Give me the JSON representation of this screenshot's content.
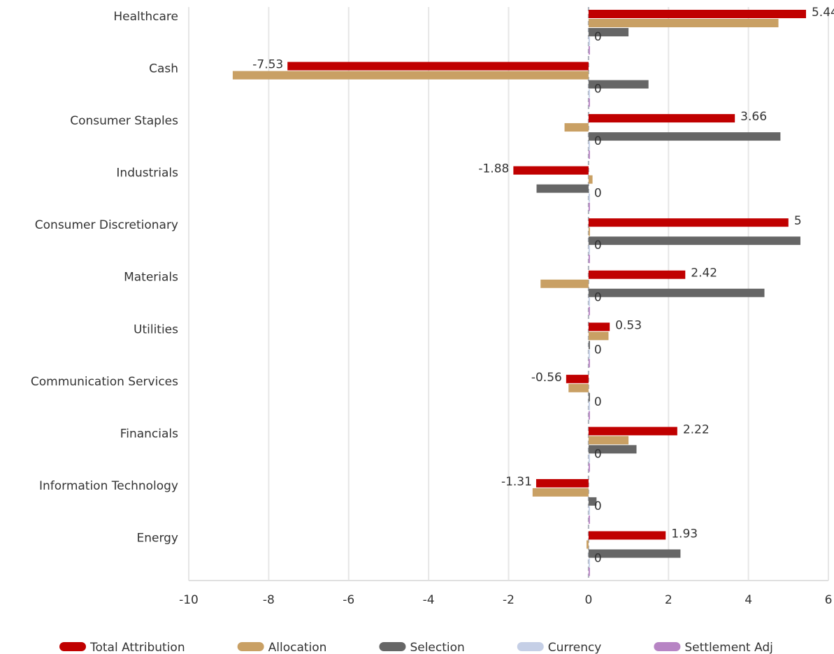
{
  "chart_data": {
    "type": "hbar",
    "categories": [
      "Healthcare",
      "Cash",
      "Consumer Staples",
      "Industrials",
      "Consumer Discretionary",
      "Materials",
      "Utilities",
      "Communication Services",
      "Financials",
      "Information Technology",
      "Energy"
    ],
    "series": [
      {
        "name": "Total Attribution",
        "color": "#c00000",
        "values": [
          5.44,
          -7.53,
          3.66,
          -1.88,
          5,
          2.42,
          0.53,
          -0.56,
          2.22,
          -1.31,
          1.93
        ],
        "labels": true
      },
      {
        "name": "Allocation",
        "color": "#c9a064",
        "values": [
          4.75,
          -8.9,
          -0.6,
          0.1,
          0,
          -1.2,
          0.5,
          -0.5,
          1.0,
          -1.4,
          -0.05
        ]
      },
      {
        "name": "Selection",
        "color": "#666666",
        "values": [
          1.0,
          1.5,
          4.8,
          -1.3,
          5.3,
          4.4,
          0,
          0,
          1.2,
          0.2,
          2.3
        ]
      },
      {
        "name": "Currency",
        "color": "#c5cfe6",
        "values": [
          0,
          0,
          0,
          0,
          0,
          0,
          0,
          0,
          0,
          0,
          0
        ],
        "labels": true
      },
      {
        "name": "Settlement Adj",
        "color": "#b784c4",
        "values": [
          0,
          0,
          0,
          0,
          0,
          0,
          0,
          0,
          0,
          0,
          0
        ]
      }
    ],
    "xlim": [
      -10,
      6
    ],
    "xticks": [
      -10,
      -8,
      -6,
      -4,
      -2,
      0,
      2,
      4,
      6
    ],
    "grid": true,
    "legend": "bottom"
  }
}
